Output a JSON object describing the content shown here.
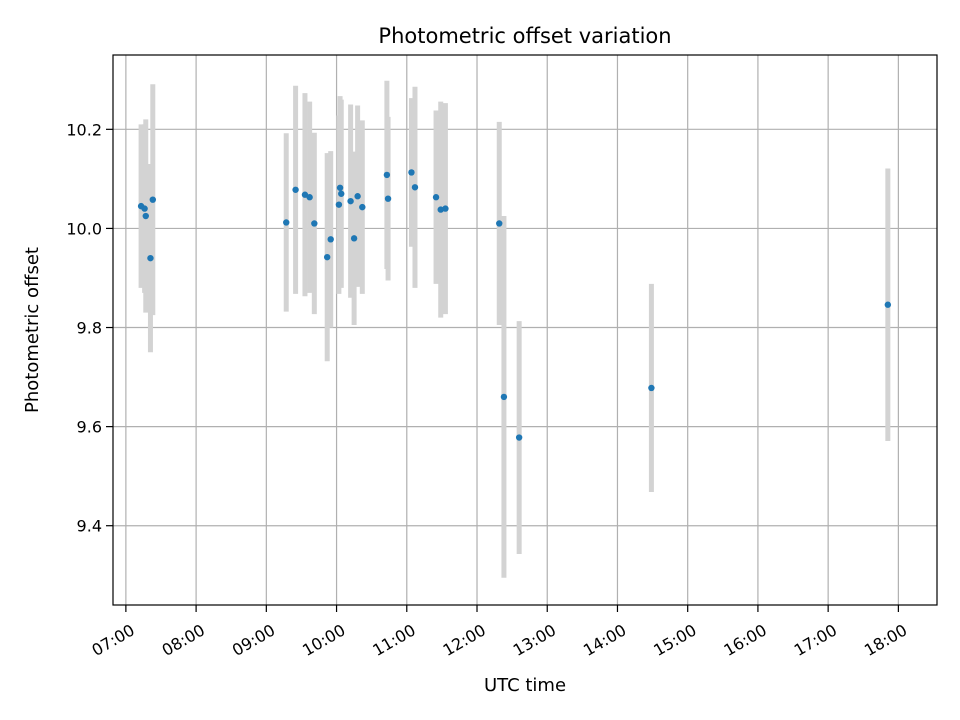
{
  "chart_data": {
    "type": "scatter",
    "title": "Photometric offset variation",
    "xlabel": "UTC time",
    "ylabel": "Photometric offset",
    "x_unit": "UTC time (HH:MM)",
    "xlim": [
      "06:49",
      "18:33"
    ],
    "ylim": [
      9.24,
      10.35
    ],
    "x_ticks": [
      "07:00",
      "08:00",
      "09:00",
      "10:00",
      "11:00",
      "12:00",
      "13:00",
      "14:00",
      "15:00",
      "16:00",
      "17:00",
      "18:00"
    ],
    "y_ticks": [
      9.4,
      9.6,
      9.8,
      10.0,
      10.2
    ],
    "y_tick_labels": [
      "9.4",
      "9.6",
      "9.8",
      "10.0",
      "10.2"
    ],
    "grid": true,
    "point_color": "#1f77b4",
    "errorbar_color": "#d3d3d3",
    "series": [
      {
        "points": [
          {
            "x": "07:13",
            "y": 10.045,
            "err": 0.165
          },
          {
            "x": "07:16",
            "y": 10.04,
            "err": 0.17
          },
          {
            "x": "07:17",
            "y": 10.025,
            "err": 0.195
          },
          {
            "x": "07:21",
            "y": 9.94,
            "err": 0.19
          },
          {
            "x": "07:23",
            "y": 10.058,
            "err": 0.233
          },
          {
            "x": "09:17",
            "y": 10.012,
            "err": 0.18
          },
          {
            "x": "09:25",
            "y": 10.078,
            "err": 0.21
          },
          {
            "x": "09:33",
            "y": 10.068,
            "err": 0.205
          },
          {
            "x": "09:37",
            "y": 10.063,
            "err": 0.193
          },
          {
            "x": "09:41",
            "y": 10.01,
            "err": 0.183
          },
          {
            "x": "09:52",
            "y": 9.942,
            "err": 0.21
          },
          {
            "x": "09:55",
            "y": 9.978,
            "err": 0.178
          },
          {
            "x": "10:02",
            "y": 10.048,
            "err": 0.18
          },
          {
            "x": "10:03",
            "y": 10.082,
            "err": 0.185
          },
          {
            "x": "10:04",
            "y": 10.07,
            "err": 0.19
          },
          {
            "x": "10:12",
            "y": 10.055,
            "err": 0.195
          },
          {
            "x": "10:15",
            "y": 9.98,
            "err": 0.175
          },
          {
            "x": "10:18",
            "y": 10.065,
            "err": 0.183
          },
          {
            "x": "10:22",
            "y": 10.043,
            "err": 0.175
          },
          {
            "x": "10:43",
            "y": 10.108,
            "err": 0.19
          },
          {
            "x": "10:44",
            "y": 10.06,
            "err": 0.165
          },
          {
            "x": "11:04",
            "y": 10.113,
            "err": 0.15
          },
          {
            "x": "11:07",
            "y": 10.083,
            "err": 0.203
          },
          {
            "x": "11:25",
            "y": 10.063,
            "err": 0.175
          },
          {
            "x": "11:29",
            "y": 10.038,
            "err": 0.218
          },
          {
            "x": "11:33",
            "y": 10.04,
            "err": 0.213
          },
          {
            "x": "12:19",
            "y": 10.01,
            "err": 0.205
          },
          {
            "x": "12:23",
            "y": 9.66,
            "err": 0.365
          },
          {
            "x": "12:36",
            "y": 9.578,
            "err": 0.235
          },
          {
            "x": "14:29",
            "y": 9.678,
            "err": 0.21
          },
          {
            "x": "17:51",
            "y": 9.846,
            "err": 0.275
          }
        ]
      }
    ]
  }
}
